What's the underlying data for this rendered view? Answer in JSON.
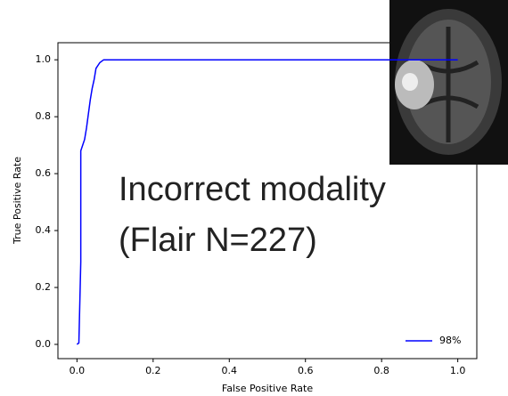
{
  "chart_data": {
    "type": "line",
    "x_label": "False Positive Rate",
    "y_label": "True Positive Rate",
    "annotations": [
      "Incorrect modality",
      "(Flair N=227)"
    ],
    "series": [
      {
        "name": "98%",
        "color": "#0000ff",
        "x": [
          0,
          0.005,
          0.01,
          0.01,
          0.02,
          0.025,
          0.03,
          0.035,
          0.04,
          0.045,
          0.05,
          0.06,
          0.07,
          1.0
        ],
        "values": [
          0,
          0.005,
          0.29,
          0.68,
          0.72,
          0.76,
          0.81,
          0.86,
          0.9,
          0.93,
          0.97,
          0.99,
          1.0,
          1.0
        ]
      }
    ],
    "xlim": [
      -0.05,
      1.05
    ],
    "ylim": [
      -0.05,
      1.06
    ],
    "xticks": [
      {
        "value": 0,
        "label": "0.0"
      },
      {
        "value": 0.2,
        "label": "0.2"
      },
      {
        "value": 0.4,
        "label": "0.4"
      },
      {
        "value": 0.6,
        "label": "0.6"
      },
      {
        "value": 0.8,
        "label": "0.8"
      },
      {
        "value": 1,
        "label": "1.0"
      }
    ],
    "yticks": [
      {
        "value": 0,
        "label": "0.0"
      },
      {
        "value": 0.2,
        "label": "0.2"
      },
      {
        "value": 0.4,
        "label": "0.4"
      },
      {
        "value": 0.6,
        "label": "0.6"
      },
      {
        "value": 0.8,
        "label": "0.8"
      },
      {
        "value": 1,
        "label": "1.0"
      }
    ],
    "legend_position": "lower right"
  }
}
